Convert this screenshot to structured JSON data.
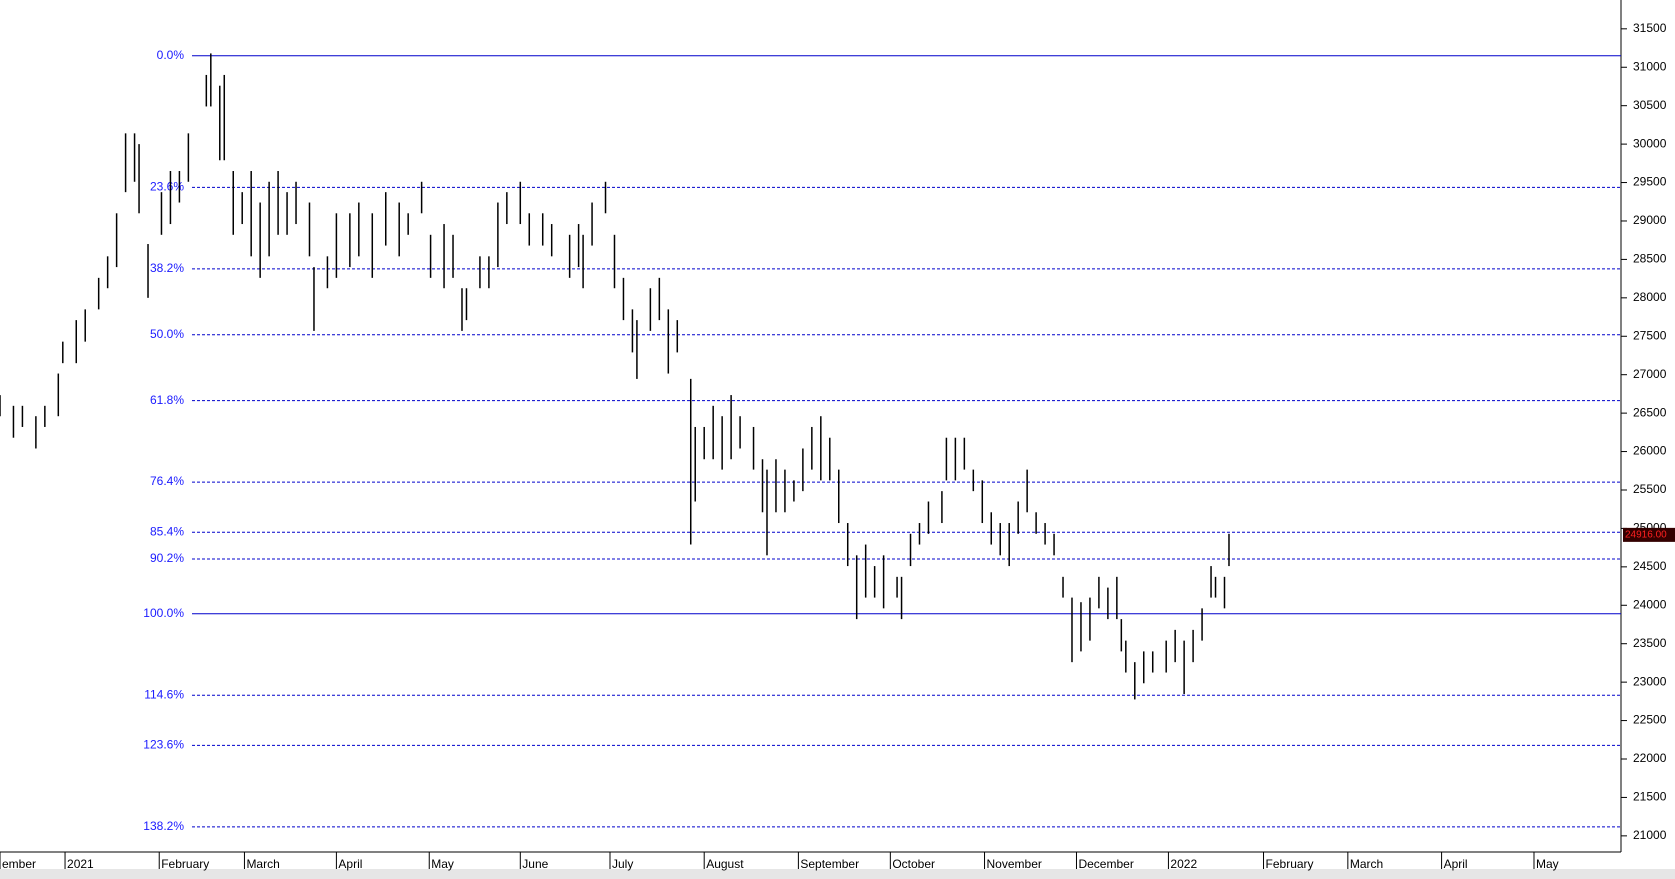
{
  "chart_data": {
    "type": "ohlc",
    "color": "#000000",
    "x": [
      0,
      3,
      5,
      8,
      10,
      13,
      14,
      17,
      19,
      22,
      24,
      26,
      28,
      30,
      31,
      33,
      36,
      38,
      40,
      42,
      46,
      47,
      49,
      50,
      52,
      54,
      56,
      58,
      60,
      62,
      64,
      66,
      69,
      70,
      73,
      75,
      78,
      80,
      83,
      86,
      89,
      91,
      94,
      96,
      99,
      101,
      103,
      104,
      107,
      109,
      111,
      113,
      116,
      118,
      121,
      123,
      127,
      129,
      130,
      132,
      135,
      137,
      139,
      141,
      142,
      145,
      147,
      149,
      151,
      154,
      155,
      157,
      159,
      161,
      163,
      165,
      168,
      170,
      171,
      173,
      175,
      177,
      179,
      181,
      183,
      185,
      187,
      189,
      191,
      193,
      195,
      197,
      200,
      201,
      203,
      205,
      207,
      210,
      211,
      213,
      215,
      217,
      219,
      221,
      223,
      225,
      227,
      229,
      231,
      233,
      235,
      237,
      239,
      241,
      243,
      245,
      247,
      249,
      250,
      251,
      253,
      255,
      257,
      260,
      262,
      264,
      266,
      268,
      270,
      271,
      273,
      274
    ],
    "high": [
      26735,
      26595,
      26595,
      26460,
      26595,
      27015,
      27430,
      27710,
      27850,
      28260,
      28540,
      29100,
      30140,
      30140,
      30000,
      28700,
      29375,
      29650,
      29650,
      30140,
      30900,
      31180,
      30760,
      30900,
      29650,
      29375,
      29650,
      29240,
      29510,
      29650,
      29375,
      29510,
      29240,
      28400,
      28540,
      29100,
      29100,
      29240,
      29100,
      29375,
      29240,
      29100,
      29510,
      28820,
      28960,
      28820,
      28125,
      28125,
      28540,
      28540,
      29240,
      29375,
      29510,
      29100,
      29100,
      28960,
      28820,
      28960,
      28820,
      29240,
      29510,
      28820,
      28260,
      27850,
      27710,
      28125,
      28260,
      27850,
      27710,
      26945,
      26320,
      26320,
      26595,
      26460,
      26735,
      26460,
      26320,
      25900,
      25765,
      25900,
      25765,
      25625,
      26040,
      26320,
      26460,
      26180,
      25765,
      25070,
      24650,
      24790,
      24510,
      24650,
      24370,
      24370,
      24930,
      25070,
      25350,
      25485,
      26180,
      26180,
      26180,
      25765,
      25625,
      25210,
      25070,
      25070,
      25350,
      25765,
      25210,
      25070,
      24930,
      24370,
      24100,
      24040,
      24100,
      24370,
      24230,
      24370,
      23820,
      23540,
      23260,
      23400,
      23400,
      23540,
      23680,
      23540,
      23680,
      23960,
      24510,
      24370,
      24370,
      24930
    ],
    "low": [
      26460,
      26180,
      26320,
      26040,
      26320,
      26460,
      27150,
      27150,
      27430,
      27850,
      28125,
      28400,
      29375,
      29510,
      29100,
      28000,
      28820,
      28960,
      29240,
      29510,
      30490,
      30490,
      29790,
      29790,
      28820,
      28960,
      28540,
      28260,
      28540,
      28820,
      28820,
      28960,
      28540,
      27570,
      28125,
      28260,
      28400,
      28540,
      28260,
      28680,
      28540,
      28820,
      29100,
      28260,
      28125,
      28260,
      27570,
      27710,
      28125,
      28125,
      28400,
      28960,
      28960,
      28680,
      28680,
      28540,
      28260,
      28400,
      28125,
      28680,
      29100,
      28125,
      27710,
      27290,
      26945,
      27570,
      27710,
      27015,
      27290,
      24790,
      25350,
      25900,
      25900,
      25765,
      25900,
      26040,
      25765,
      25210,
      24650,
      25210,
      25210,
      25350,
      25485,
      25765,
      25625,
      25625,
      25070,
      24510,
      23820,
      24100,
      24100,
      23960,
      24100,
      23820,
      24510,
      24790,
      24930,
      25070,
      25625,
      25625,
      25765,
      25485,
      25070,
      24790,
      24650,
      24510,
      24930,
      25210,
      24930,
      24790,
      24650,
      24100,
      23260,
      23400,
      23540,
      23960,
      23820,
      23820,
      23400,
      23125,
      22775,
      22985,
      23125,
      23125,
      23260,
      22845,
      23260,
      23540,
      24100,
      24100,
      23960,
      24510
    ],
    "xlim": [
      0,
      361.4
    ],
    "xticks": [
      {
        "value": 0,
        "label": "ember"
      },
      {
        "value": 14.5,
        "label": "2021"
      },
      {
        "value": 35.5,
        "label": "February"
      },
      {
        "value": 54.5,
        "label": "March"
      },
      {
        "value": 75,
        "label": "April"
      },
      {
        "value": 95.7,
        "label": "May"
      },
      {
        "value": 116,
        "label": "June"
      },
      {
        "value": 136,
        "label": "July"
      },
      {
        "value": 157,
        "label": "August"
      },
      {
        "value": 178,
        "label": "September"
      },
      {
        "value": 198.5,
        "label": "October"
      },
      {
        "value": 219.5,
        "label": "November"
      },
      {
        "value": 240,
        "label": "December"
      },
      {
        "value": 260.5,
        "label": "2022"
      },
      {
        "value": 281.7,
        "label": "February"
      },
      {
        "value": 300.5,
        "label": "March"
      },
      {
        "value": 321.4,
        "label": "April"
      },
      {
        "value": 342,
        "label": "May"
      }
    ],
    "ylim": [
      20790,
      31875
    ],
    "yticks": [
      21000,
      21500,
      22000,
      22500,
      23000,
      23500,
      24000,
      24500,
      25000,
      25500,
      26000,
      26500,
      27000,
      27500,
      28000,
      28500,
      29000,
      29500,
      30000,
      30500,
      31000,
      31500
    ],
    "fib_color": "#0000cc",
    "fib_levels": [
      {
        "value": 31150,
        "label": "0.0%",
        "style": "solid"
      },
      {
        "value": 29437,
        "label": "23.6%",
        "style": "dashed"
      },
      {
        "value": 28377,
        "label": "38.2%",
        "style": "dashed"
      },
      {
        "value": 27520,
        "label": "50.0%",
        "style": "dashed"
      },
      {
        "value": 26663,
        "label": "61.8%",
        "style": "dashed"
      },
      {
        "value": 25603,
        "label": "76.4%",
        "style": "dashed"
      },
      {
        "value": 24950,
        "label": "85.4%",
        "style": "dashed"
      },
      {
        "value": 24602,
        "label": "90.2%",
        "style": "dashed"
      },
      {
        "value": 23890,
        "label": "100.0%",
        "style": "solid"
      },
      {
        "value": 22830,
        "label": "114.6%",
        "style": "dashed"
      },
      {
        "value": 22177,
        "label": "123.6%",
        "style": "dashed"
      },
      {
        "value": 21117,
        "label": "138.2%",
        "style": "dashed"
      }
    ],
    "last_price": {
      "value": 24916,
      "label": "24916.00"
    }
  }
}
